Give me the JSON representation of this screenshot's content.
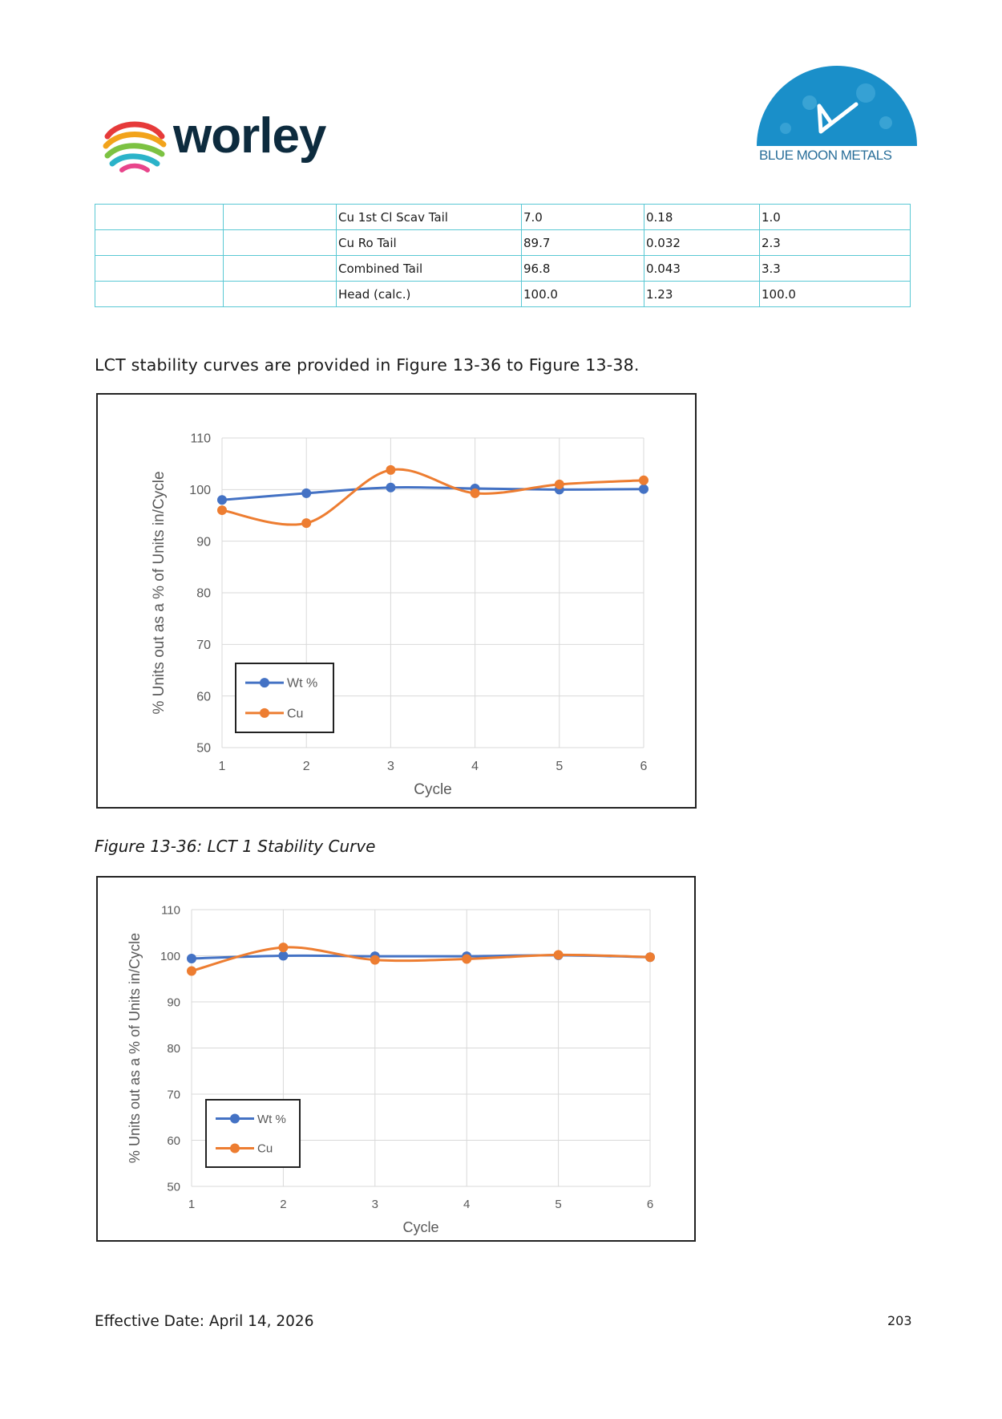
{
  "header": {
    "left_logo_text": "worley",
    "right_logo_text": "BLUE MOON METALS"
  },
  "table": {
    "rows": [
      [
        "",
        "",
        "Cu 1st Cl Scav Tail",
        "7.0",
        "0.18",
        "1.0"
      ],
      [
        "",
        "",
        "Cu Ro Tail",
        "89.7",
        "0.032",
        "2.3"
      ],
      [
        "",
        "",
        "Combined Tail",
        "96.8",
        "0.043",
        "3.3"
      ],
      [
        "",
        "",
        "Head (calc.)",
        "100.0",
        "1.23",
        "100.0"
      ]
    ]
  },
  "intro_text": "LCT stability curves are provided in Figure 13-36 to Figure 13-38.",
  "caption_1": "Figure 13-36: LCT 1 Stability Curve",
  "chart_data": [
    {
      "type": "line",
      "x": [
        1,
        2,
        3,
        4,
        5,
        6
      ],
      "series": [
        {
          "name": "Wt %",
          "values": [
            98.0,
            99.3,
            100.4,
            100.2,
            100.0,
            100.1
          ]
        },
        {
          "name": "Cu",
          "values": [
            96.0,
            93.5,
            103.8,
            99.3,
            101.0,
            101.8
          ]
        }
      ],
      "xlabel": "Cycle",
      "ylabel": "% Units out as a % of Units in/Cycle",
      "ylim": [
        50,
        110
      ],
      "yticks": [
        "50",
        "60",
        "70",
        "80",
        "90",
        "100",
        "110"
      ],
      "xticks": [
        "1",
        "2",
        "3",
        "4",
        "5",
        "6"
      ],
      "grid": true,
      "legend": "bottom-left",
      "colors": {
        "Wt %": "#4472c4",
        "Cu": "#ed7d31"
      }
    },
    {
      "type": "line",
      "x": [
        1,
        2,
        3,
        4,
        5,
        6
      ],
      "series": [
        {
          "name": "Wt %",
          "values": [
            99.4,
            100.0,
            99.9,
            99.9,
            100.1,
            99.7
          ]
        },
        {
          "name": "Cu",
          "values": [
            96.7,
            101.8,
            99.1,
            99.3,
            100.2,
            99.7
          ]
        }
      ],
      "xlabel": "Cycle",
      "ylabel": "% Units out as a % of Units in/Cycle",
      "ylim": [
        50,
        110
      ],
      "yticks": [
        "50",
        "60",
        "70",
        "80",
        "90",
        "100",
        "110"
      ],
      "xticks": [
        "1",
        "2",
        "3",
        "4",
        "5",
        "6"
      ],
      "grid": true,
      "legend": "bottom-left",
      "colors": {
        "Wt %": "#4472c4",
        "Cu": "#ed7d31"
      }
    }
  ],
  "footer": {
    "effective_date": "Effective Date: April 14, 2026",
    "page_number": "203"
  }
}
